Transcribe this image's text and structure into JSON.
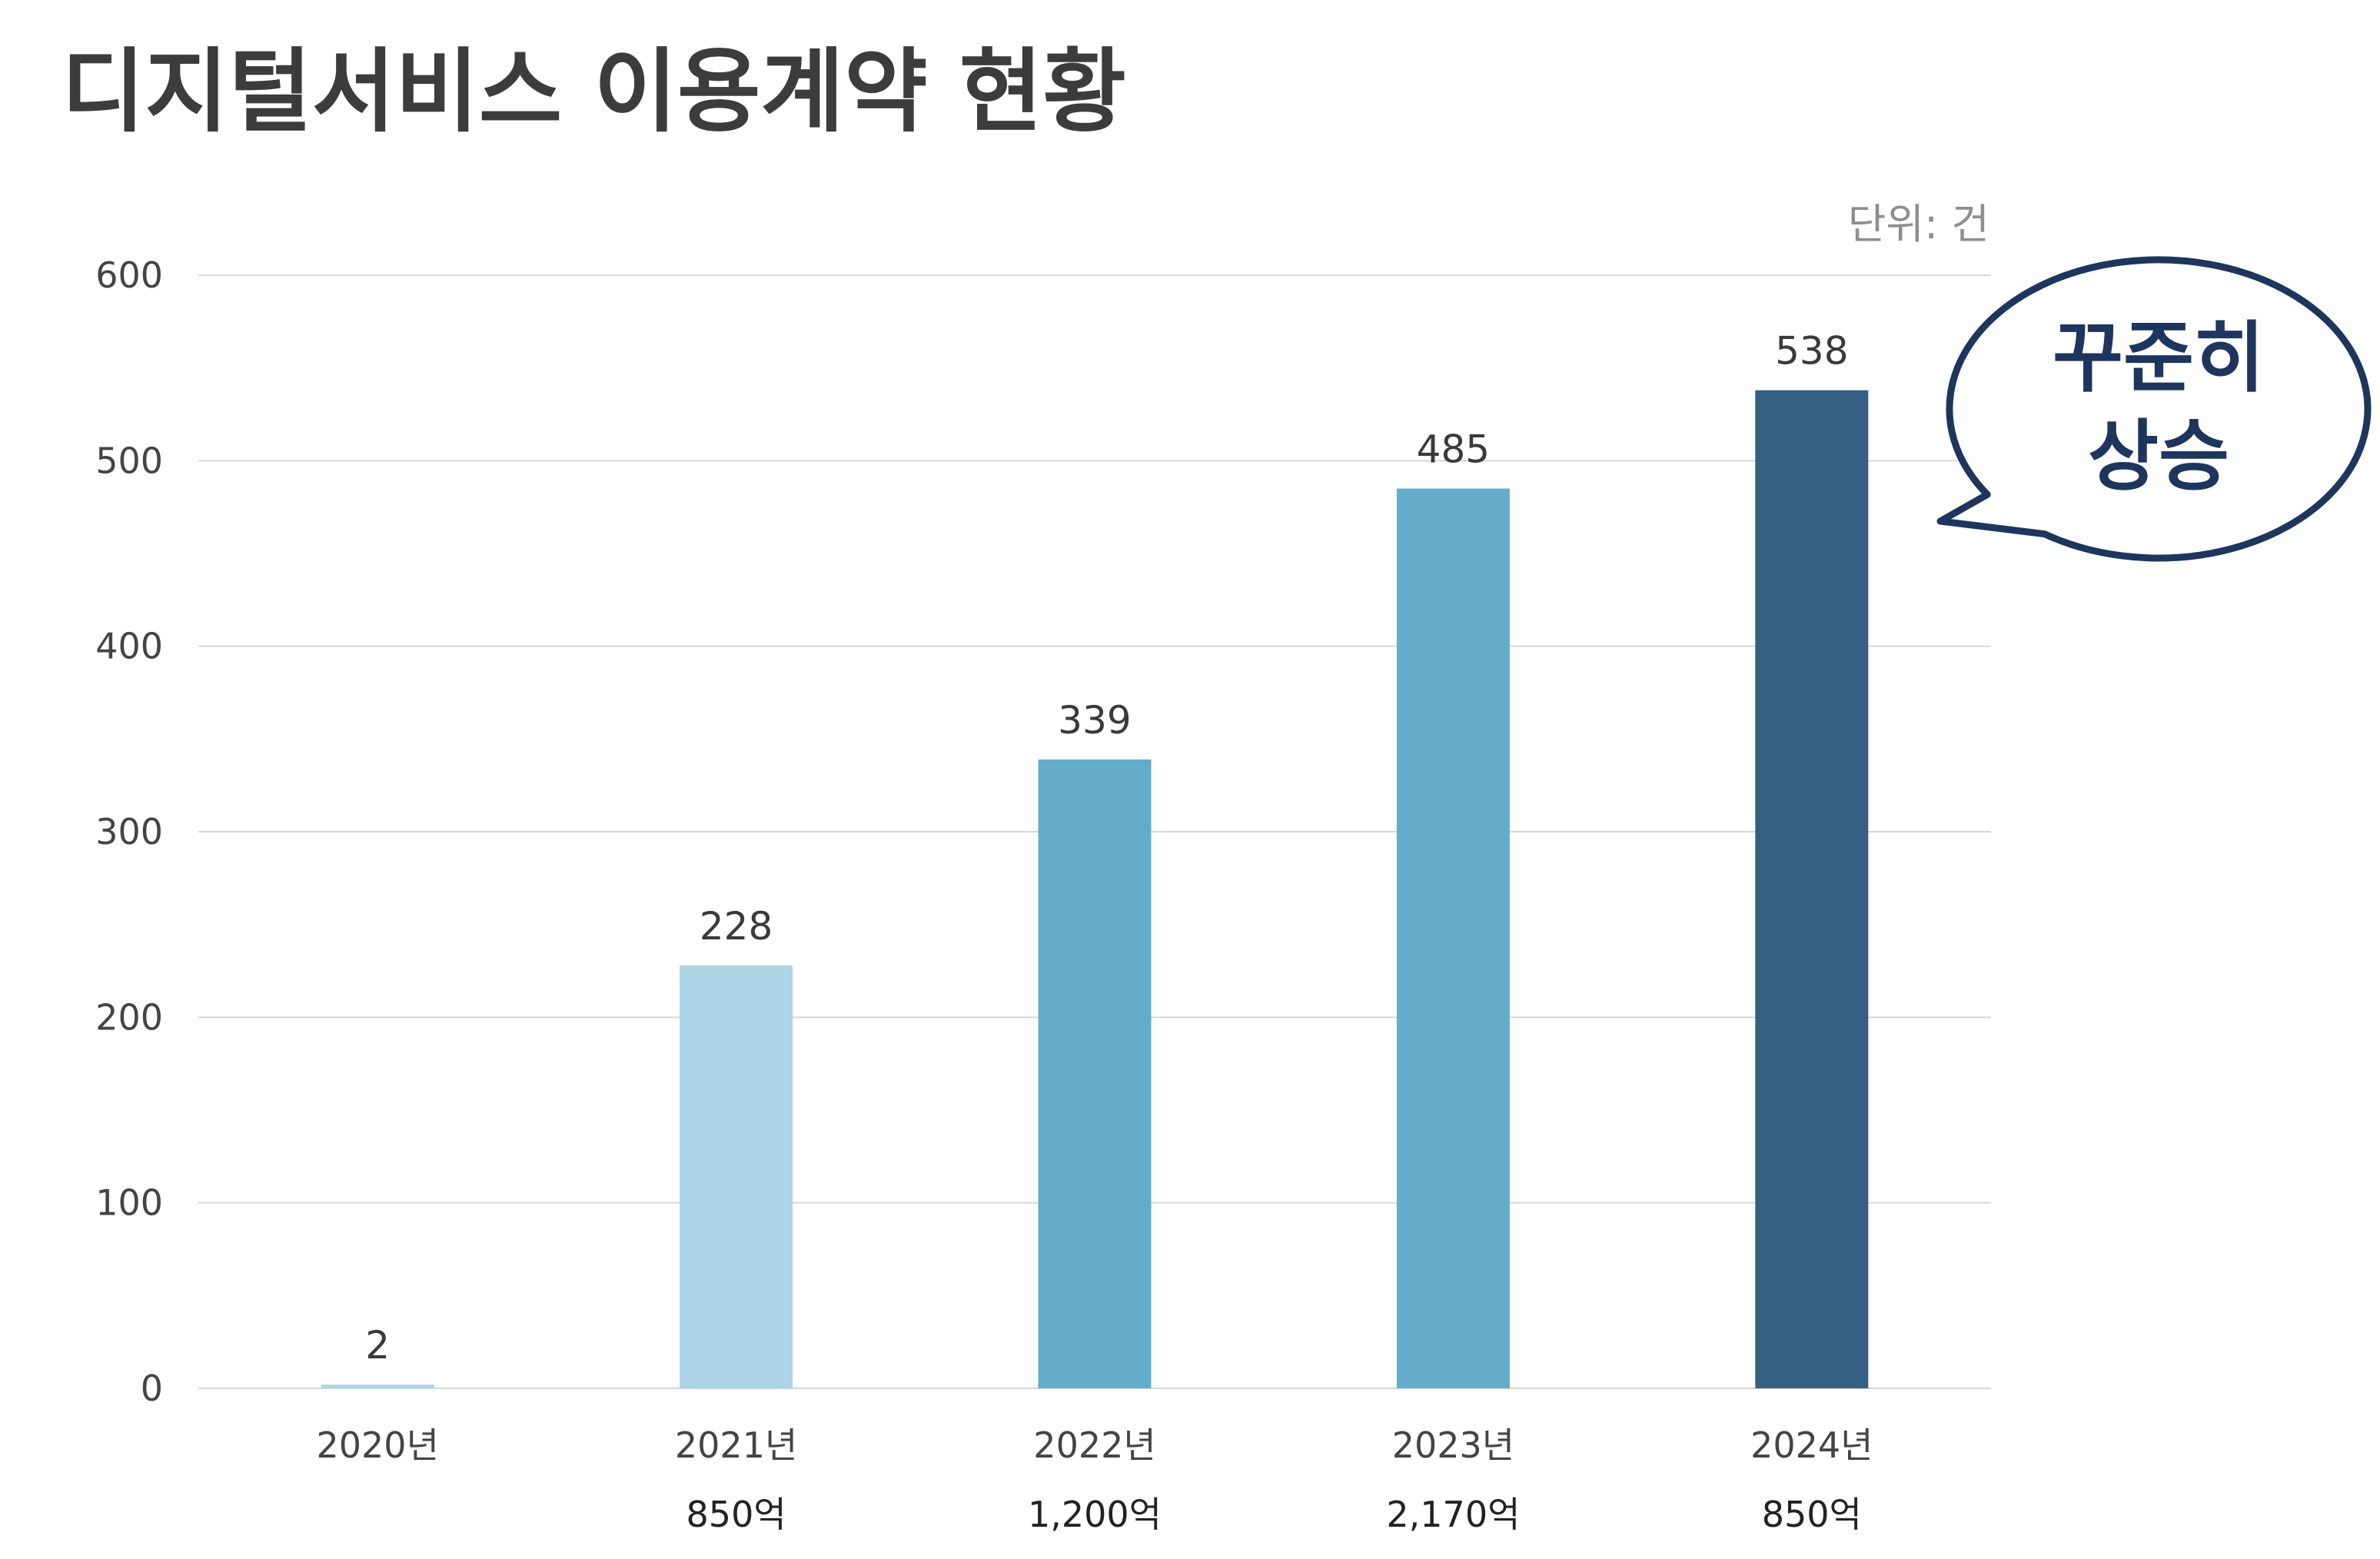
{
  "chart_data": {
    "type": "bar",
    "title": "디지털서비스 이용계약 현황",
    "unit_label": "단위: 건",
    "categories": [
      "2020년",
      "2021년",
      "2022년",
      "2023년",
      "2024년"
    ],
    "values": [
      2,
      228,
      339,
      485,
      538
    ],
    "value_labels": [
      "2",
      "228",
      "339",
      "485",
      "538"
    ],
    "amount_labels": [
      "",
      "850억",
      "1,200억",
      "2,170억",
      "850억"
    ],
    "ylim": [
      0,
      600
    ],
    "yticks": [
      0,
      100,
      200,
      300,
      400,
      500,
      600
    ],
    "ytick_labels": [
      "0",
      "100",
      "200",
      "300",
      "400",
      "500",
      "600"
    ],
    "grid": true,
    "bar_colors": [
      "#add4e4",
      "#add4e4",
      "#63adca",
      "#63adca",
      "#366082"
    ],
    "callout": {
      "lines": [
        "꾸준히",
        "상승"
      ],
      "text_color": "#1e355e",
      "border_color": "#1e355e"
    }
  }
}
